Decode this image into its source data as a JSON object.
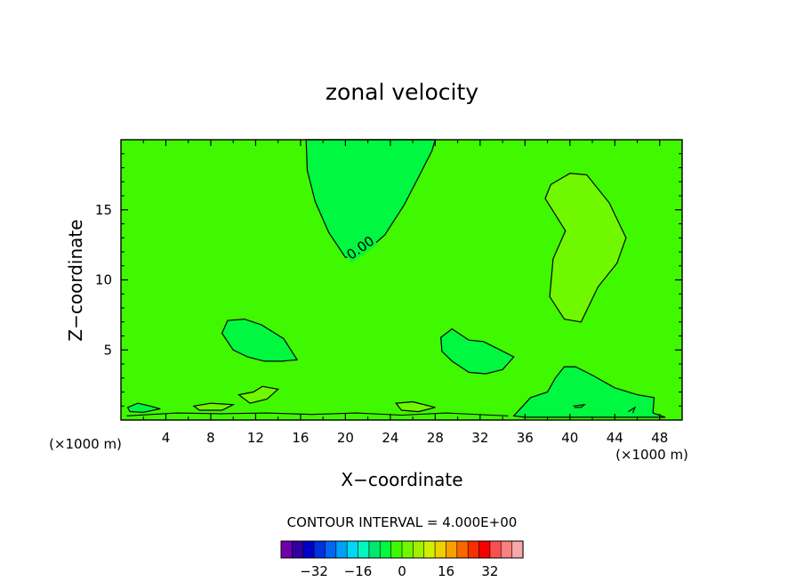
{
  "chart_data": {
    "type": "contour",
    "title": "zonal velocity",
    "xlabel": "X−coordinate",
    "ylabel": "Z−coordinate",
    "x_units": "(×1000 m)",
    "xlim": [
      0,
      50
    ],
    "ylim": [
      0,
      20
    ],
    "x_ticks": [
      4,
      8,
      12,
      16,
      20,
      24,
      28,
      32,
      36,
      40,
      44,
      48
    ],
    "y_ticks": [
      5,
      10,
      15
    ],
    "contour_label": "0.00",
    "contour_interval_text": "CONTOUR INTERVAL = 4.000E+00",
    "colorbar": {
      "colors": [
        "#7000a8",
        "#3000a0",
        "#0000c8",
        "#0030e0",
        "#0068f0",
        "#00a0f8",
        "#00d8f8",
        "#00f8c0",
        "#00e870",
        "#00f840",
        "#40f800",
        "#70f800",
        "#a0f000",
        "#d0f000",
        "#f0d000",
        "#f8a000",
        "#f86800",
        "#f83000",
        "#f80000",
        "#f85050",
        "#f88080",
        "#f8a8a8"
      ],
      "tick_labels": [
        "−32",
        "−16",
        "0",
        "16",
        "32"
      ],
      "tick_values": [
        -32,
        -16,
        0,
        16,
        32
      ],
      "vmin": -44,
      "vmax": 44
    },
    "background_level_color": "#40f800",
    "regions": [
      {
        "name": "upper-center-negative",
        "color": "#00f840",
        "points": [
          [
            16.5,
            20
          ],
          [
            16.6,
            17.8
          ],
          [
            17.3,
            15.6
          ],
          [
            18.5,
            13.4
          ],
          [
            20.0,
            11.6
          ],
          [
            21.5,
            11.8
          ],
          [
            23.5,
            13.2
          ],
          [
            25.2,
            15.3
          ],
          [
            26.5,
            17.3
          ],
          [
            27.7,
            19.2
          ],
          [
            28.0,
            20
          ]
        ]
      },
      {
        "name": "upper-right-positive",
        "color": "#70f800",
        "points": [
          [
            37.8,
            15.8
          ],
          [
            38.3,
            16.8
          ],
          [
            40.0,
            17.6
          ],
          [
            41.5,
            17.5
          ],
          [
            43.5,
            15.5
          ],
          [
            45.0,
            13.0
          ],
          [
            44.2,
            11.2
          ],
          [
            42.5,
            9.5
          ],
          [
            41.0,
            7.0
          ],
          [
            39.5,
            7.2
          ],
          [
            38.2,
            8.8
          ],
          [
            38.5,
            11.5
          ],
          [
            39.6,
            13.5
          ]
        ]
      },
      {
        "name": "lower-left-negative",
        "color": "#00f840",
        "points": [
          [
            9.0,
            6.2
          ],
          [
            9.5,
            7.1
          ],
          [
            11.0,
            7.2
          ],
          [
            12.5,
            6.8
          ],
          [
            14.5,
            5.8
          ],
          [
            15.7,
            4.3
          ],
          [
            14.3,
            4.2
          ],
          [
            12.8,
            4.2
          ],
          [
            11.3,
            4.5
          ],
          [
            10.0,
            5.0
          ]
        ]
      },
      {
        "name": "lower-middle-negative",
        "color": "#00f840",
        "points": [
          [
            28.5,
            5.9
          ],
          [
            29.5,
            6.5
          ],
          [
            31.0,
            5.7
          ],
          [
            32.3,
            5.6
          ],
          [
            33.8,
            5.0
          ],
          [
            35.0,
            4.5
          ],
          [
            34.0,
            3.6
          ],
          [
            32.5,
            3.3
          ],
          [
            31.0,
            3.4
          ],
          [
            29.5,
            4.2
          ],
          [
            28.6,
            4.9
          ]
        ]
      },
      {
        "name": "bottom-right-negative",
        "color": "#00f840",
        "points": [
          [
            35.0,
            0.3
          ],
          [
            36.5,
            1.6
          ],
          [
            38.0,
            2.0
          ],
          [
            38.7,
            3.0
          ],
          [
            39.5,
            3.8
          ],
          [
            40.5,
            3.8
          ],
          [
            42.0,
            3.2
          ],
          [
            44.0,
            2.3
          ],
          [
            46.0,
            1.8
          ],
          [
            47.5,
            1.6
          ],
          [
            47.4,
            0.5
          ],
          [
            48.5,
            0.2
          ],
          [
            36.0,
            0.2
          ]
        ]
      },
      {
        "name": "bottom-left-negative",
        "color": "#00f840",
        "points": [
          [
            0.6,
            0.9
          ],
          [
            1.5,
            1.2
          ],
          [
            2.6,
            1.0
          ],
          [
            3.5,
            0.8
          ],
          [
            2.0,
            0.55
          ],
          [
            0.8,
            0.6
          ]
        ]
      },
      {
        "name": "bottom-positive-patch-1",
        "color": "#70f800",
        "points": [
          [
            10.5,
            1.8
          ],
          [
            11.8,
            2.0
          ],
          [
            12.6,
            2.4
          ],
          [
            14.0,
            2.2
          ],
          [
            13.0,
            1.5
          ],
          [
            11.5,
            1.2
          ]
        ]
      },
      {
        "name": "bottom-positive-patch-2",
        "color": "#70f800",
        "points": [
          [
            6.5,
            1.0
          ],
          [
            8.0,
            1.2
          ],
          [
            10.0,
            1.1
          ],
          [
            9.0,
            0.7
          ],
          [
            7.0,
            0.7
          ]
        ]
      },
      {
        "name": "bottom-positive-patch-3",
        "color": "#70f800",
        "points": [
          [
            24.5,
            1.2
          ],
          [
            26.0,
            1.3
          ],
          [
            28.0,
            0.9
          ],
          [
            26.5,
            0.6
          ],
          [
            25.0,
            0.7
          ]
        ]
      }
    ],
    "extra_contours": [
      {
        "name": "near-ground-line",
        "points": [
          [
            0.5,
            0.3
          ],
          [
            5.0,
            0.5
          ],
          [
            9.0,
            0.45
          ],
          [
            13.0,
            0.5
          ],
          [
            17.0,
            0.4
          ],
          [
            21.0,
            0.5
          ],
          [
            25.0,
            0.35
          ],
          [
            29.0,
            0.5
          ],
          [
            33.0,
            0.35
          ],
          [
            34.5,
            0.3
          ]
        ]
      },
      {
        "name": "small-loop-1",
        "points": [
          [
            40.3,
            1.0
          ],
          [
            41.3,
            1.1
          ],
          [
            41.0,
            0.9
          ],
          [
            40.4,
            0.9
          ]
        ]
      },
      {
        "name": "small-loop-2",
        "points": [
          [
            45.2,
            0.6
          ],
          [
            45.8,
            0.9
          ],
          [
            45.6,
            0.5
          ]
        ]
      }
    ]
  }
}
